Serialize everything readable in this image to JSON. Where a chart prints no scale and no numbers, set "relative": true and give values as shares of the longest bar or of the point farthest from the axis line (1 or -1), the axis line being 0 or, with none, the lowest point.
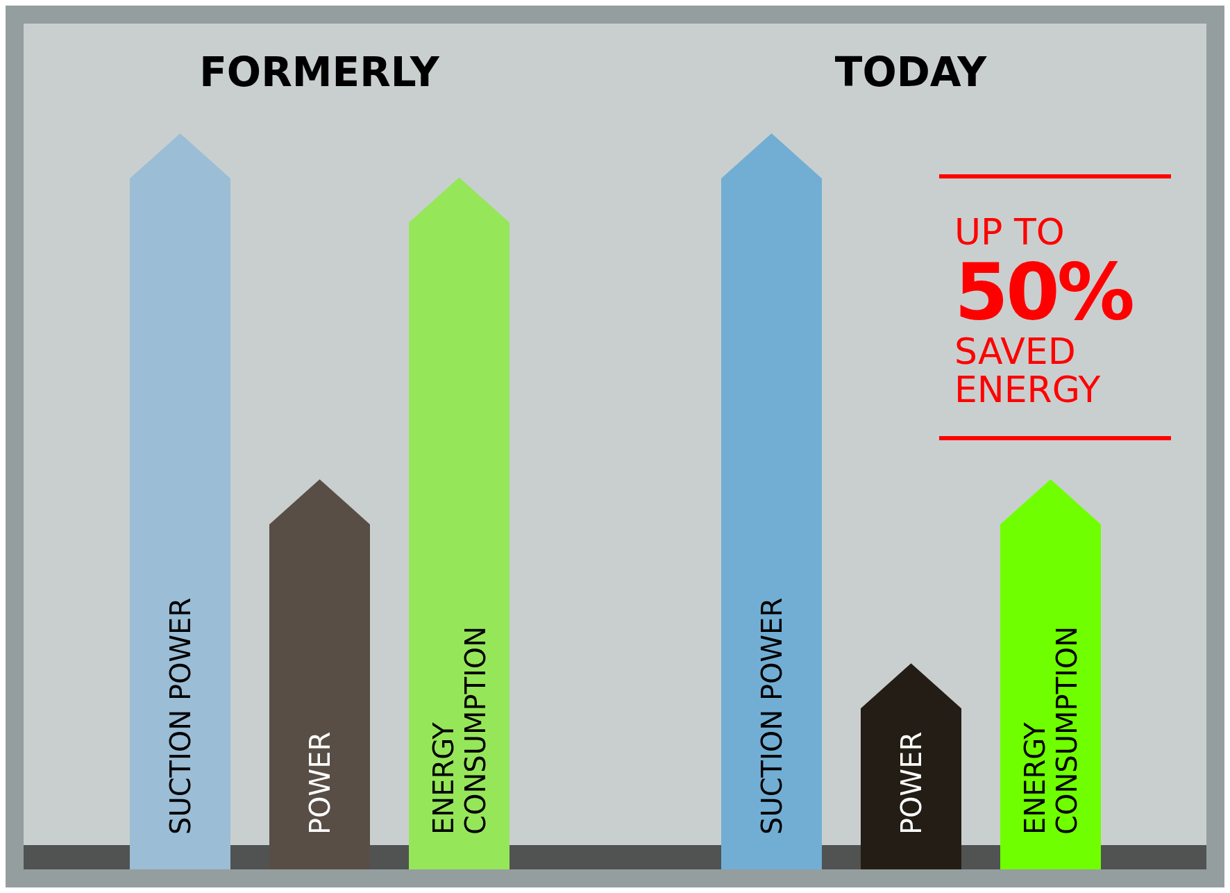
{
  "chart_data": {
    "type": "bar",
    "relative": true,
    "categories": [
      "FORMERLY",
      "TODAY"
    ],
    "series": [
      {
        "name": "SUCTION POWER",
        "colors": [
          "#9bbdd6",
          "#72aed4"
        ],
        "values": [
          1,
          1
        ]
      },
      {
        "name": "POWER",
        "colors": [
          "#584e45",
          "#241d15"
        ],
        "values": [
          0.53,
          0.28
        ]
      },
      {
        "name": "ENERGY CONSUMPTION",
        "colors": [
          "#96e65a",
          "#70ff00"
        ],
        "values": [
          0.94,
          0.53
        ]
      }
    ],
    "annotations": [
      "UP TO",
      "50%",
      "SAVED ENERGY"
    ]
  }
}
